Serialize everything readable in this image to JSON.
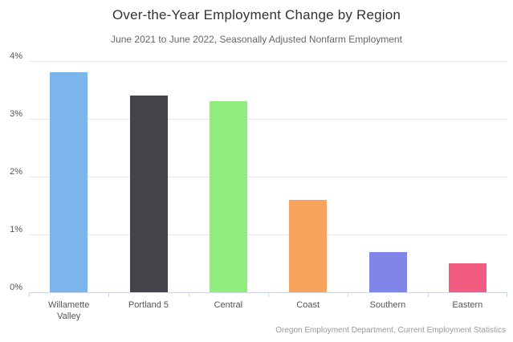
{
  "chart_data": {
    "type": "bar",
    "title": "Over-the-Year Employment Change by Region",
    "subtitle": "June 2021 to June 2022, Seasonally Adjusted Nonfarm Employment",
    "categories": [
      "Willamette Valley",
      "Portland 5",
      "Central",
      "Coast",
      "Southern",
      "Eastern"
    ],
    "values": [
      3.8,
      3.4,
      3.3,
      1.6,
      0.7,
      0.5
    ],
    "unit": "%",
    "bar_colors": [
      "#7cb5ec",
      "#434348",
      "#90ed7d",
      "#f7a35c",
      "#8085e9",
      "#f15c80"
    ],
    "ylim": [
      0,
      4
    ],
    "ytick_labels": [
      "0%",
      "1%",
      "2%",
      "3%",
      "4%"
    ],
    "xlabel": "",
    "ylabel": "",
    "grid": true,
    "legend_position": "none",
    "source": "Oregon Employment Department, Current Employment Statistics"
  },
  "colors": {
    "background": "#ffffff",
    "gridline": "#e6e6e6",
    "axis_line": "#ccd6eb",
    "title_text": "#333333",
    "subtitle_text": "#666666",
    "tick_text": "#555555",
    "source_text": "#999999"
  }
}
